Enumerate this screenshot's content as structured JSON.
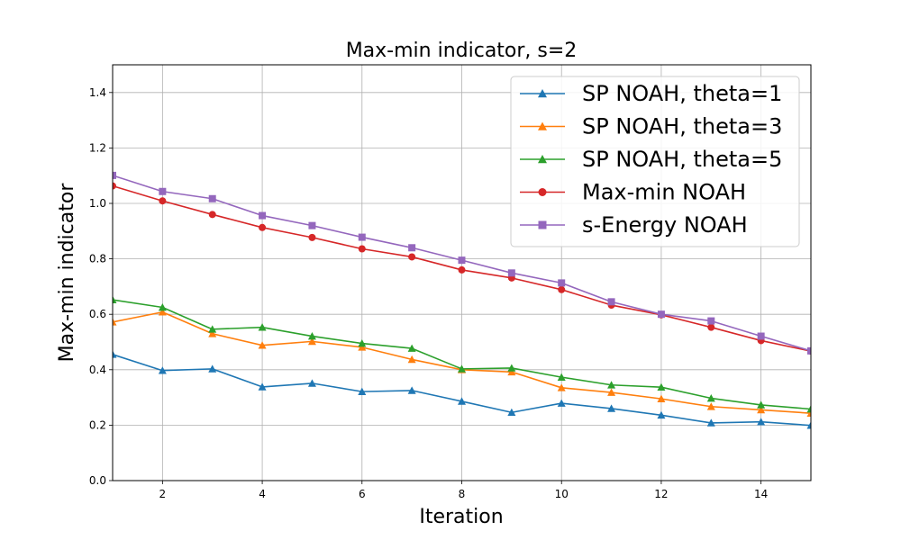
{
  "chart_data": {
    "type": "line",
    "title": "Max-min indicator, s=2",
    "xlabel": "Iteration",
    "ylabel": "Max-min indicator",
    "xlim": [
      1,
      15
    ],
    "ylim": [
      0,
      1.5
    ],
    "xticks": [
      2,
      4,
      6,
      8,
      10,
      12,
      14
    ],
    "yticks": [
      0.0,
      0.2,
      0.4,
      0.6,
      0.8,
      1.0,
      1.2,
      1.4
    ],
    "grid": true,
    "legend_position": "top-right",
    "x": [
      1,
      2,
      3,
      4,
      5,
      6,
      7,
      8,
      9,
      10,
      11,
      12,
      13,
      14,
      15
    ],
    "series": [
      {
        "name": "SP NOAH, theta=1",
        "color": "#1f77b4",
        "marker": "triangle",
        "values": [
          0.455,
          0.397,
          0.403,
          0.338,
          0.351,
          0.321,
          0.325,
          0.286,
          0.246,
          0.279,
          0.26,
          0.236,
          0.208,
          0.212,
          0.199
        ]
      },
      {
        "name": "SP NOAH, theta=3",
        "color": "#ff7f0e",
        "marker": "triangle",
        "values": [
          0.572,
          0.608,
          0.53,
          0.488,
          0.502,
          0.481,
          0.437,
          0.4,
          0.392,
          0.335,
          0.318,
          0.295,
          0.267,
          0.255,
          0.243
        ]
      },
      {
        "name": "SP NOAH, theta=5",
        "color": "#2ca02c",
        "marker": "triangle",
        "values": [
          0.652,
          0.625,
          0.546,
          0.553,
          0.521,
          0.495,
          0.477,
          0.403,
          0.406,
          0.373,
          0.345,
          0.337,
          0.297,
          0.273,
          0.258
        ]
      },
      {
        "name": "Max-min NOAH",
        "color": "#d62728",
        "marker": "circle",
        "values": [
          1.063,
          1.009,
          0.96,
          0.913,
          0.877,
          0.836,
          0.807,
          0.76,
          0.731,
          0.689,
          0.633,
          0.598,
          0.553,
          0.505,
          0.467
        ]
      },
      {
        "name": "s-Energy NOAH",
        "color": "#9467bd",
        "marker": "square",
        "values": [
          1.101,
          1.043,
          1.017,
          0.956,
          0.92,
          0.878,
          0.84,
          0.795,
          0.749,
          0.713,
          0.645,
          0.6,
          0.576,
          0.521,
          0.468
        ]
      }
    ]
  }
}
